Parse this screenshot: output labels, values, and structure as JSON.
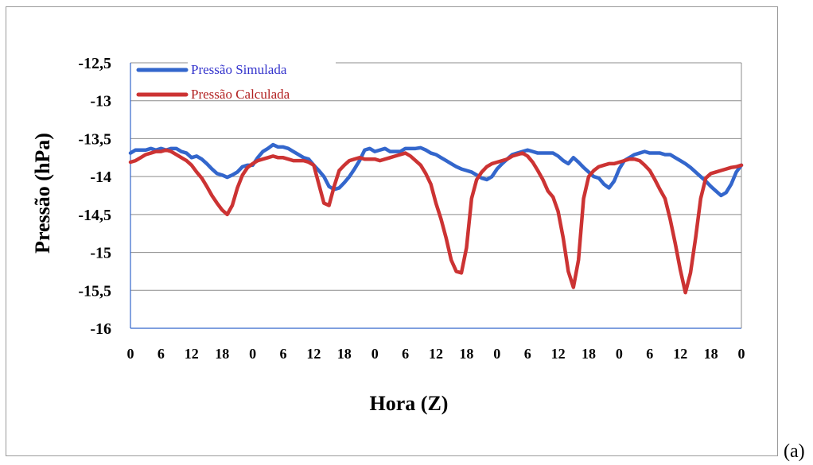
{
  "panel_label": "(a)",
  "chart_data": {
    "type": "line",
    "title": "",
    "xlabel": "Hora (Z)",
    "ylabel": "Pressão (hPa)",
    "ylim": [
      -16,
      -12.5
    ],
    "y_ticks": [
      "-12,5",
      "-13",
      "-13,5",
      "-14",
      "-14,5",
      "-15",
      "-15,5",
      "-16"
    ],
    "y_tick_values": [
      -12.5,
      -13,
      -13.5,
      -14,
      -14.5,
      -15,
      -15.5,
      -16
    ],
    "x_tick_labels": [
      "0",
      "6",
      "12",
      "18",
      "0",
      "6",
      "12",
      "18",
      "0",
      "6",
      "12",
      "18",
      "0",
      "6",
      "12",
      "18",
      "0",
      "6",
      "12",
      "18",
      "0"
    ],
    "x_unit": "hours",
    "xlim": [
      0,
      120
    ],
    "grid": "horizontal",
    "legend_position": "top-left",
    "series": [
      {
        "name": "Pressão Simulada",
        "color": "#3366cc",
        "label_color": "#3333cc",
        "x": [
          0,
          1,
          2,
          3,
          4,
          5,
          6,
          7,
          8,
          9,
          10,
          11,
          12,
          13,
          14,
          15,
          16,
          17,
          18,
          19,
          20,
          21,
          22,
          23,
          24,
          25,
          26,
          27,
          28,
          29,
          30,
          31,
          32,
          33,
          34,
          35,
          36,
          37,
          38,
          39,
          40,
          41,
          42,
          43,
          44,
          45,
          46,
          47,
          48,
          49,
          50,
          51,
          52,
          53,
          54,
          55,
          56,
          57,
          58,
          59,
          60,
          61,
          62,
          63,
          64,
          65,
          66,
          67,
          68,
          69,
          70,
          71,
          72,
          73,
          74,
          75,
          76,
          77,
          78,
          79,
          80,
          81,
          82,
          83,
          84,
          85,
          86,
          87,
          88,
          89,
          90,
          91,
          92,
          93,
          94,
          95,
          96,
          97,
          98,
          99,
          100,
          101,
          102,
          103,
          104,
          105,
          106,
          107,
          108,
          109,
          110,
          111,
          112,
          113,
          114,
          115,
          116,
          117,
          118,
          119,
          120
        ],
        "values": [
          -13.69,
          -13.65,
          -13.65,
          -13.65,
          -13.63,
          -13.65,
          -13.63,
          -13.65,
          -13.63,
          -13.63,
          -13.67,
          -13.69,
          -13.75,
          -13.73,
          -13.77,
          -13.83,
          -13.9,
          -13.96,
          -13.98,
          -14.01,
          -13.98,
          -13.94,
          -13.87,
          -13.85,
          -13.85,
          -13.75,
          -13.67,
          -13.63,
          -13.58,
          -13.61,
          -13.61,
          -13.63,
          -13.67,
          -13.71,
          -13.75,
          -13.77,
          -13.85,
          -13.92,
          -14,
          -14.13,
          -14.17,
          -14.15,
          -14.08,
          -14,
          -13.9,
          -13.79,
          -13.65,
          -13.63,
          -13.67,
          -13.65,
          -13.63,
          -13.67,
          -13.67,
          -13.67,
          -13.63,
          -13.63,
          -13.63,
          -13.62,
          -13.65,
          -13.69,
          -13.71,
          -13.75,
          -13.79,
          -13.83,
          -13.87,
          -13.9,
          -13.92,
          -13.94,
          -13.98,
          -14.02,
          -14.04,
          -14,
          -13.9,
          -13.83,
          -13.77,
          -13.71,
          -13.69,
          -13.67,
          -13.65,
          -13.67,
          -13.69,
          -13.69,
          -13.69,
          -13.69,
          -13.73,
          -13.79,
          -13.83,
          -13.75,
          -13.81,
          -13.88,
          -13.94,
          -14,
          -14.02,
          -14.1,
          -14.15,
          -14.06,
          -13.9,
          -13.79,
          -13.75,
          -13.71,
          -13.69,
          -13.67,
          -13.69,
          -13.69,
          -13.69,
          -13.71,
          -13.71,
          -13.75,
          -13.79,
          -13.83,
          -13.88,
          -13.94,
          -14,
          -14.06,
          -14.13,
          -14.19,
          -14.25,
          -14.21,
          -14.1,
          -13.94,
          -13.85
        ]
      },
      {
        "name": "Pressão Calculada",
        "color": "#cc3333",
        "label_color": "#b22222",
        "x": [
          0,
          1,
          2,
          3,
          4,
          5,
          6,
          7,
          8,
          9,
          10,
          11,
          12,
          13,
          14,
          15,
          16,
          17,
          18,
          19,
          20,
          21,
          22,
          23,
          24,
          25,
          26,
          27,
          28,
          29,
          30,
          31,
          32,
          33,
          34,
          35,
          36,
          37,
          38,
          39,
          40,
          41,
          42,
          43,
          44,
          45,
          46,
          47,
          48,
          49,
          50,
          51,
          52,
          53,
          54,
          55,
          56,
          57,
          58,
          59,
          60,
          61,
          62,
          63,
          64,
          65,
          66,
          67,
          68,
          69,
          70,
          71,
          72,
          73,
          74,
          75,
          76,
          77,
          78,
          79,
          80,
          81,
          82,
          83,
          84,
          85,
          86,
          87,
          88,
          89,
          90,
          91,
          92,
          93,
          94,
          95,
          96,
          97,
          98,
          99,
          100,
          101,
          102,
          103,
          104,
          105,
          106,
          107,
          108,
          109,
          110,
          111,
          112,
          113,
          114,
          115,
          116,
          117,
          118,
          119,
          120
        ],
        "values": [
          -13.81,
          -13.79,
          -13.75,
          -13.71,
          -13.69,
          -13.67,
          -13.67,
          -13.65,
          -13.67,
          -13.71,
          -13.75,
          -13.79,
          -13.85,
          -13.94,
          -14.02,
          -14.13,
          -14.25,
          -14.35,
          -14.44,
          -14.5,
          -14.38,
          -14.15,
          -13.98,
          -13.88,
          -13.83,
          -13.79,
          -13.77,
          -13.75,
          -13.73,
          -13.75,
          -13.75,
          -13.77,
          -13.79,
          -13.79,
          -13.79,
          -13.81,
          -13.85,
          -14.1,
          -14.35,
          -14.38,
          -14.13,
          -13.92,
          -13.85,
          -13.79,
          -13.77,
          -13.75,
          -13.77,
          -13.77,
          -13.77,
          -13.79,
          -13.77,
          -13.75,
          -13.73,
          -13.71,
          -13.69,
          -13.73,
          -13.79,
          -13.85,
          -13.96,
          -14.1,
          -14.35,
          -14.56,
          -14.81,
          -15.1,
          -15.25,
          -15.27,
          -14.94,
          -14.29,
          -14.04,
          -13.94,
          -13.87,
          -13.83,
          -13.81,
          -13.79,
          -13.77,
          -13.73,
          -13.71,
          -13.69,
          -13.73,
          -13.81,
          -13.92,
          -14.04,
          -14.19,
          -14.27,
          -14.46,
          -14.81,
          -15.25,
          -15.46,
          -15.1,
          -14.29,
          -14,
          -13.92,
          -13.87,
          -13.85,
          -13.83,
          -13.83,
          -13.81,
          -13.79,
          -13.77,
          -13.77,
          -13.79,
          -13.85,
          -13.92,
          -14.04,
          -14.17,
          -14.29,
          -14.56,
          -14.88,
          -15.23,
          -15.53,
          -15.27,
          -14.81,
          -14.29,
          -14.02,
          -13.96,
          -13.94,
          -13.92,
          -13.9,
          -13.88,
          -13.87,
          -13.85
        ]
      }
    ]
  }
}
